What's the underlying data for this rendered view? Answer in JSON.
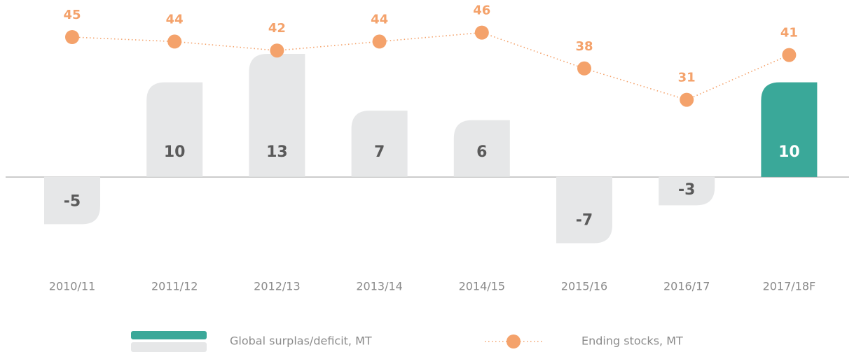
{
  "chart_data": {
    "type": "combo",
    "categories": [
      "2010/11",
      "2011/12",
      "2012/13",
      "2013/14",
      "2014/15",
      "2015/16",
      "2016/17",
      "2017/18F"
    ],
    "series": [
      {
        "name": "Global surplas/deficit, MT",
        "type": "bar",
        "values": [
          -5,
          10,
          13,
          7,
          6,
          -7,
          -3,
          10
        ],
        "colors": [
          "#e6e7e8",
          "#e6e7e8",
          "#e6e7e8",
          "#e6e7e8",
          "#e6e7e8",
          "#e6e7e8",
          "#e6e7e8",
          "#3aa899"
        ]
      },
      {
        "name": "Ending stocks, MT",
        "type": "line",
        "axis": "y2",
        "color": "#f4a26b",
        "values": [
          45,
          44,
          42,
          44,
          46,
          38,
          31,
          41
        ]
      }
    ],
    "ylim": [
      -8,
      15
    ],
    "y2lim": [
      20,
      50
    ]
  }
}
